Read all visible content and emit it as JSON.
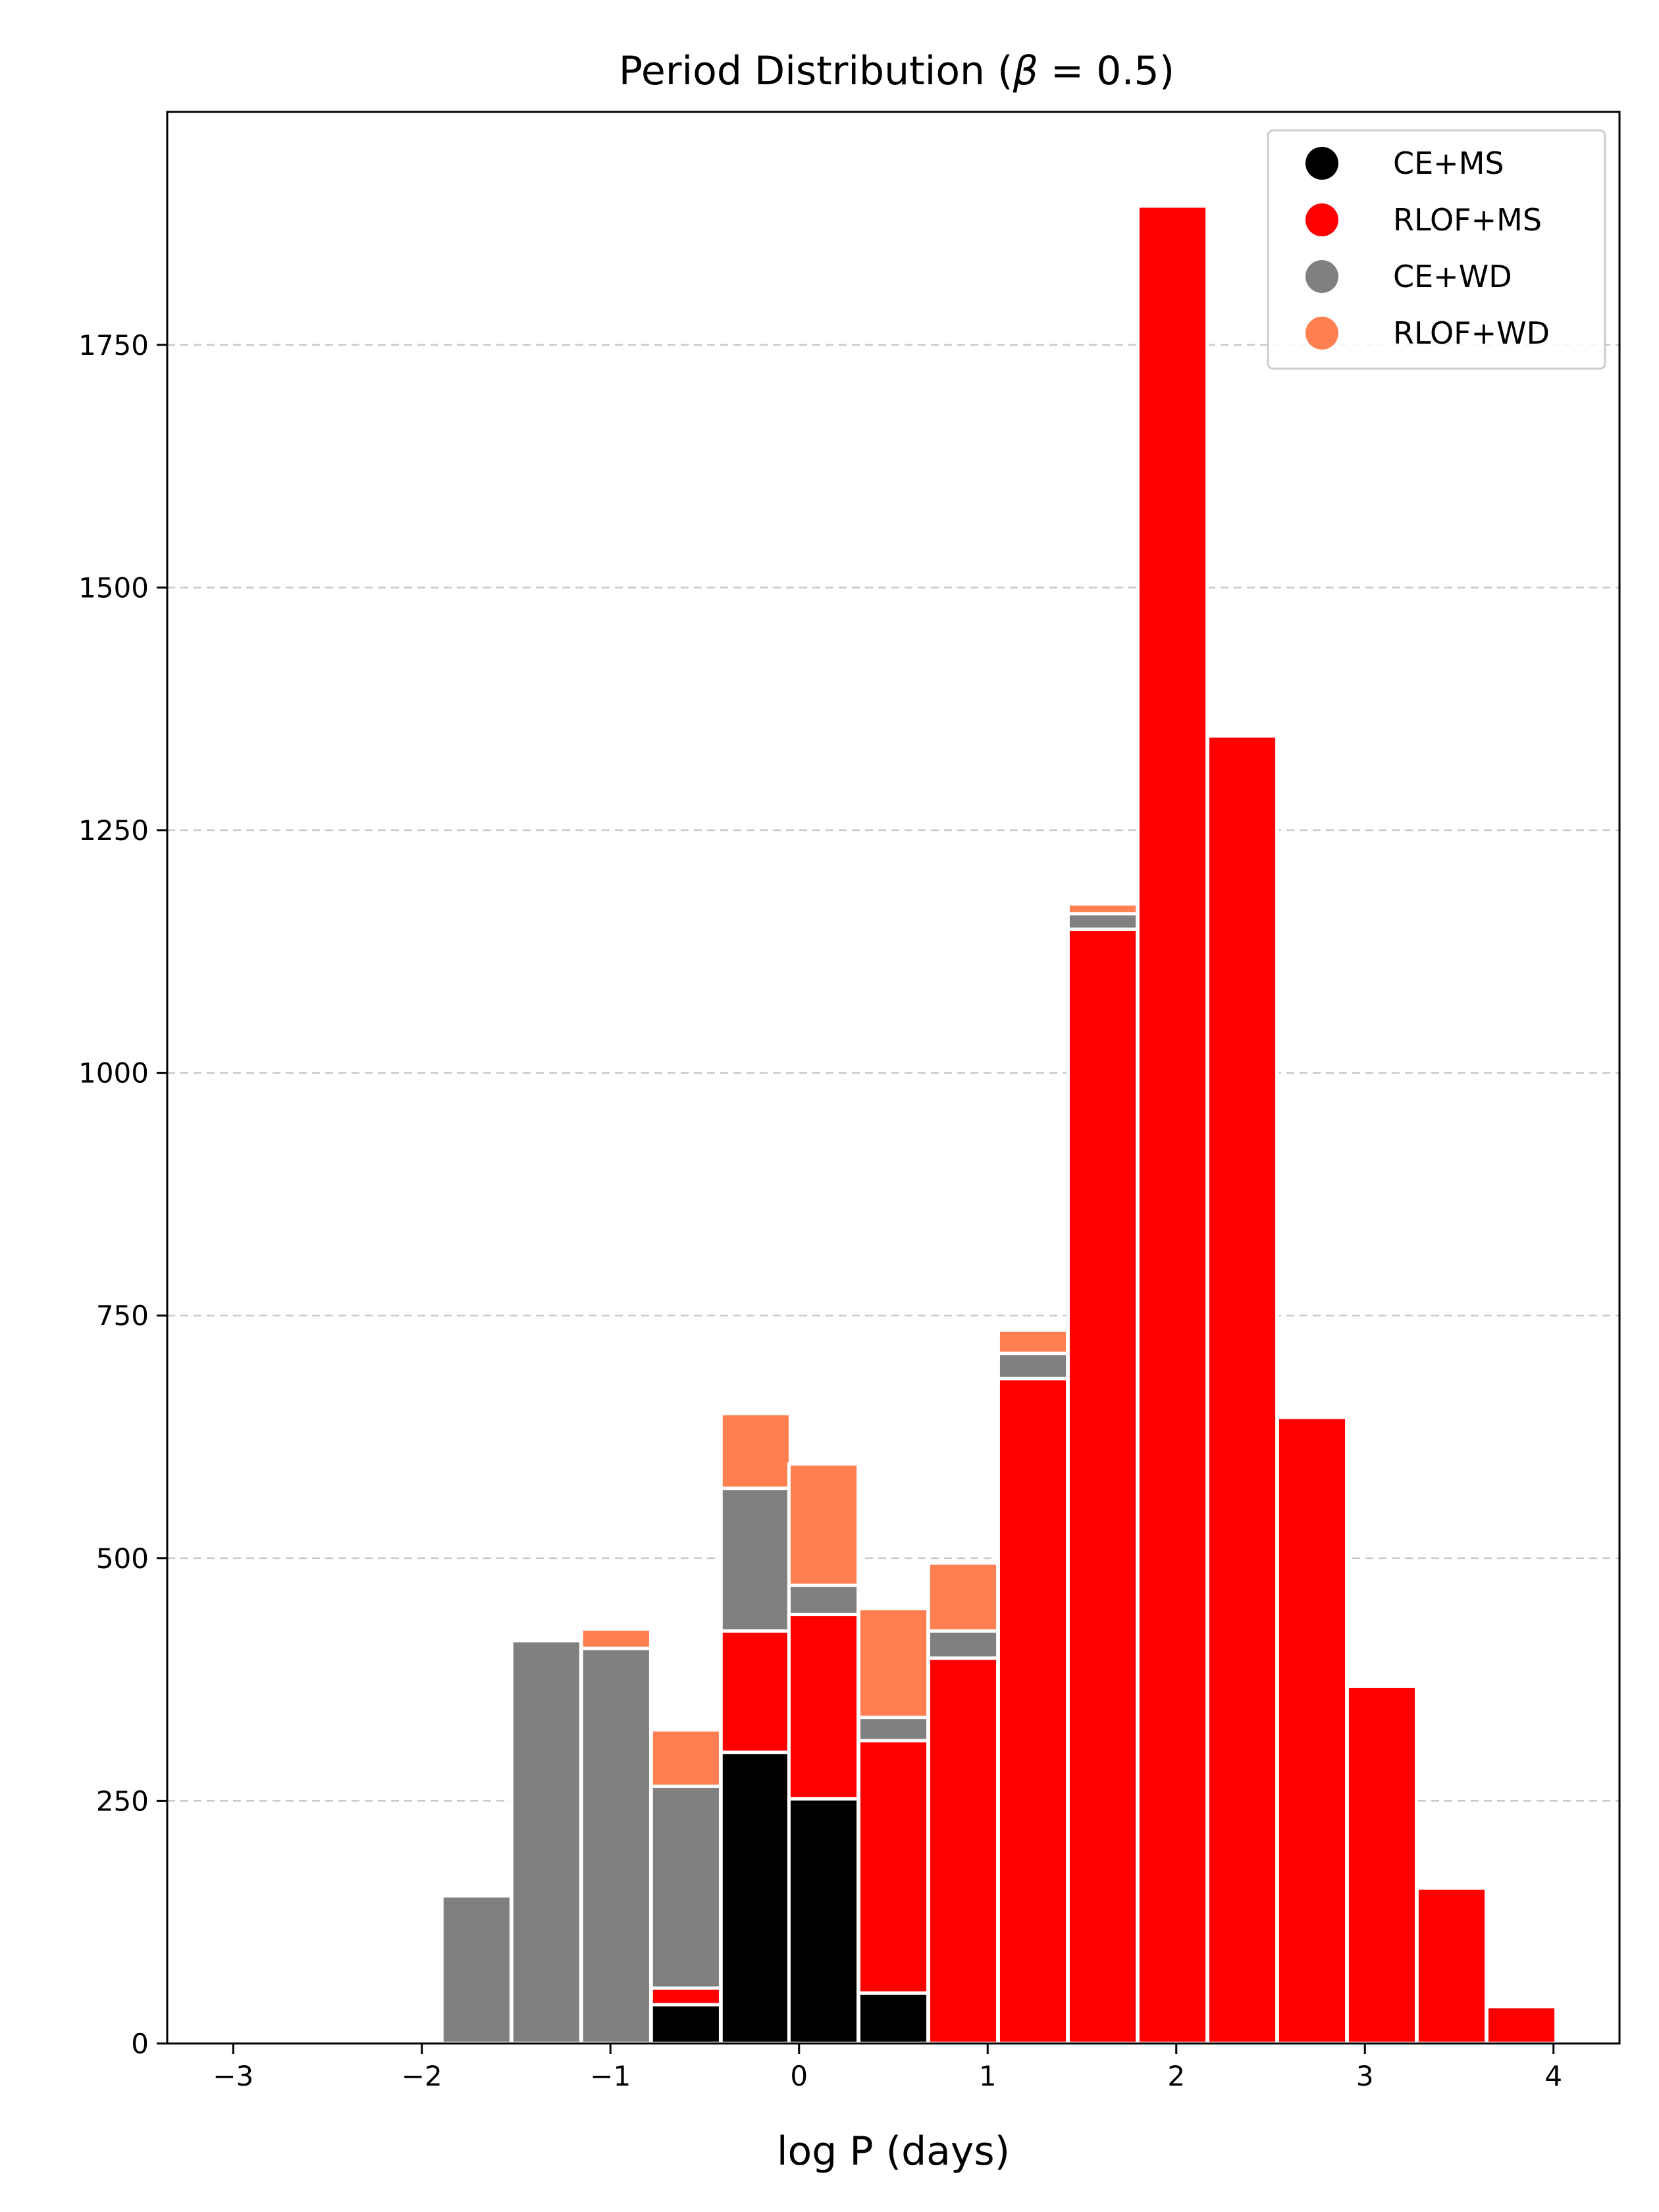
{
  "chart_data": {
    "type": "bar",
    "stacked": true,
    "title": "Period Distribution (β = 0.5)",
    "title_prefix": "Period Distribution (",
    "title_beta": "β",
    "title_suffix": " = 0.5)",
    "xlabel": "log P (days)",
    "ylabel": "",
    "xlim": [
      -3.35,
      4.35
    ],
    "ylim": [
      0,
      1990
    ],
    "bin_width": 0.367,
    "xticks": [
      -3,
      -2,
      -1,
      0,
      1,
      2,
      3,
      4
    ],
    "xtick_labels": [
      "−3",
      "−2",
      "−1",
      "0",
      "1",
      "2",
      "3",
      "4"
    ],
    "yticks": [
      0,
      250,
      500,
      750,
      1000,
      1250,
      1500,
      1750
    ],
    "ytick_labels": [
      "0",
      "250",
      "500",
      "750",
      "1000",
      "1250",
      "1500",
      "1750"
    ],
    "grid": "horizontal dashed",
    "legend_position": "top-right",
    "bin_centers": [
      -1.71,
      -1.34,
      -0.97,
      -0.6,
      -0.23,
      0.13,
      0.5,
      0.87,
      1.24,
      1.61,
      1.98,
      2.35,
      2.72,
      3.09,
      3.46,
      3.83
    ],
    "series": [
      {
        "name": "CE+MS",
        "color": "#000000",
        "values": [
          0,
          0,
          0,
          40,
          300,
          252,
          52,
          0,
          0,
          0,
          0,
          0,
          0,
          0,
          0,
          0
        ]
      },
      {
        "name": "RLOF+MS",
        "color": "#ff0000",
        "values": [
          0,
          0,
          0,
          17,
          125,
          190,
          260,
          397,
          685,
          1148,
          1893,
          1347,
          645,
          368,
          160,
          38
        ]
      },
      {
        "name": "CE+WD",
        "color": "#808080",
        "values": [
          152,
          415,
          407,
          208,
          147,
          30,
          24,
          28,
          26,
          16,
          0,
          0,
          0,
          0,
          0,
          0
        ]
      },
      {
        "name": "RLOF+WD",
        "color": "#ff7f50",
        "values": [
          0,
          0,
          20,
          58,
          77,
          125,
          112,
          70,
          24,
          10,
          0,
          0,
          0,
          0,
          0,
          0
        ]
      }
    ]
  }
}
